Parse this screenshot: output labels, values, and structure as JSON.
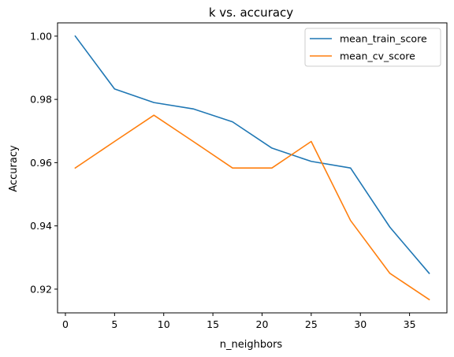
{
  "chart_data": {
    "type": "line",
    "title": "k vs. accuracy",
    "xlabel": "n_neighbors",
    "ylabel": "Accuracy",
    "x": [
      1,
      5,
      9,
      13,
      17,
      21,
      25,
      29,
      33,
      37
    ],
    "xlim": [
      -0.8,
      38.8
    ],
    "ylim": [
      0.9125,
      1.0042
    ],
    "xticks": [
      0,
      5,
      10,
      15,
      20,
      25,
      30,
      35
    ],
    "yticks": [
      0.92,
      0.94,
      0.96,
      0.98,
      1.0
    ],
    "ytick_labels": [
      "0.92",
      "0.94",
      "0.96",
      "0.98",
      "1.00"
    ],
    "grid": false,
    "legend_position": "top-right",
    "series": [
      {
        "name": "mean_train_score",
        "color": "#1f77b4",
        "values": [
          1.0,
          0.9833,
          0.979,
          0.977,
          0.9729,
          0.9646,
          0.9604,
          0.9583,
          0.9396,
          0.925
        ]
      },
      {
        "name": "mean_cv_score",
        "color": "#ff7f0e",
        "values": [
          0.9583,
          0.9667,
          0.975,
          0.9667,
          0.9583,
          0.9583,
          0.9667,
          0.9417,
          0.925,
          0.9167
        ]
      }
    ]
  }
}
